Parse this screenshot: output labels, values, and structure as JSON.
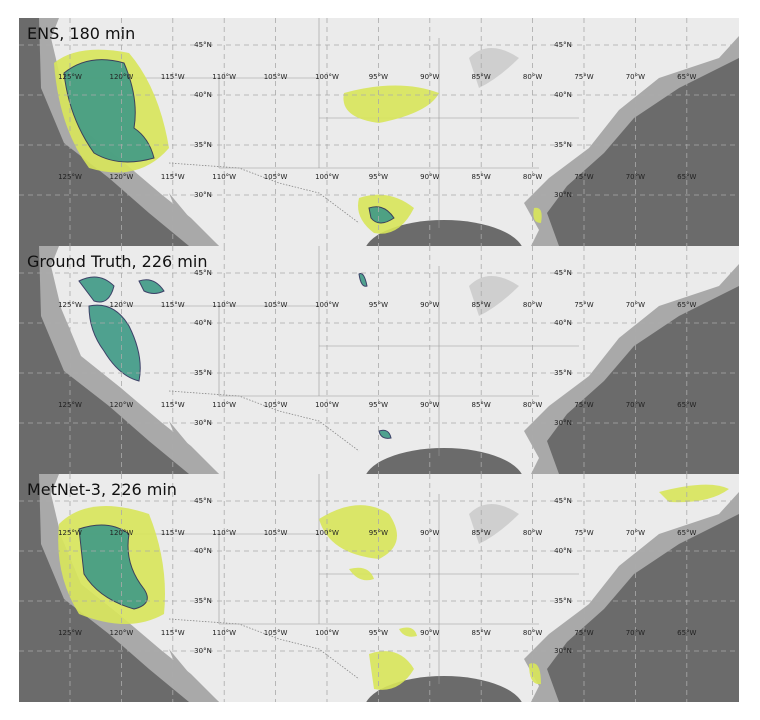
{
  "panels": [
    {
      "title": "ENS, 180 min"
    },
    {
      "title": "Ground Truth, 226 min"
    },
    {
      "title": "MetNet-3, 226 min"
    }
  ],
  "graticule": {
    "longitudes": [
      "125°W",
      "120°W",
      "115°W",
      "110°W",
      "105°W",
      "100°W",
      "95°W",
      "90°W",
      "85°W",
      "80°W",
      "75°W",
      "70°W",
      "65°W"
    ],
    "latitudes": [
      "45°N",
      "40°N",
      "35°N",
      "30°N"
    ]
  }
}
